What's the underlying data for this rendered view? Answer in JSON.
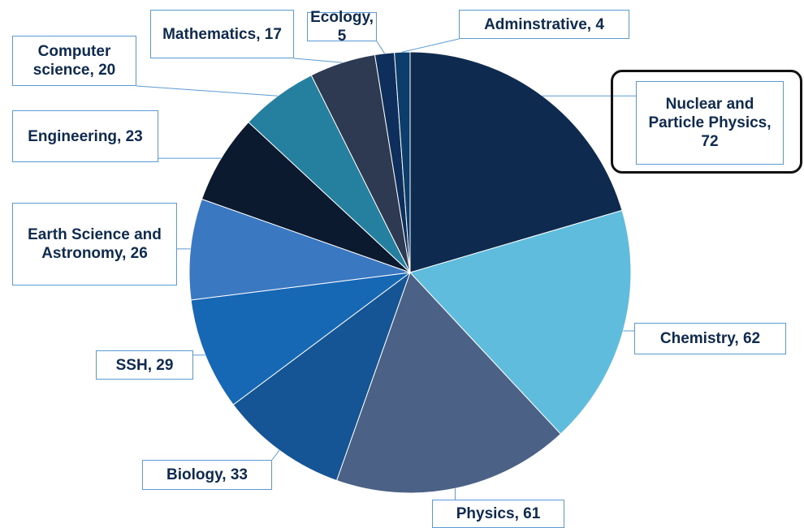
{
  "chart_data": {
    "type": "pie",
    "categories": [
      "Nuclear and Particle Physics",
      "Chemistry",
      "Physics",
      "Biology",
      "SSH",
      "Earth Science and Astronomy",
      "Engineering",
      "Computer science",
      "Mathematics",
      "Ecology",
      "Adminstrative"
    ],
    "values": [
      72,
      62,
      61,
      33,
      29,
      26,
      23,
      20,
      17,
      5,
      4
    ],
    "colors": [
      "#0e2a4f",
      "#5fbcdc",
      "#4c6186",
      "#155596",
      "#1667b4",
      "#3b78c2",
      "#0c1a30",
      "#257f9e",
      "#2d3a52",
      "#0e2f5c",
      "#0d3d6b"
    ],
    "start_angle": 0,
    "direction": "clockwise"
  }
}
